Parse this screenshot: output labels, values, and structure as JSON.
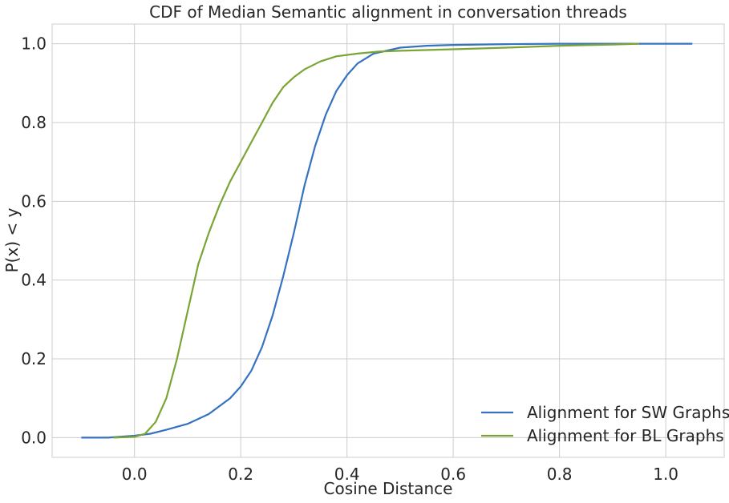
{
  "chart_data": {
    "type": "line",
    "title": "CDF of Median Semantic alignment in conversation threads",
    "xlabel": "Cosine Distance",
    "ylabel": "P(x) < y",
    "xlim": [
      -0.155,
      1.11
    ],
    "ylim": [
      -0.05,
      1.05
    ],
    "xticks": [
      0.0,
      0.2,
      0.4,
      0.6,
      0.8,
      1.0
    ],
    "xtick_labels": [
      "0.0",
      "0.2",
      "0.4",
      "0.6",
      "0.8",
      "1.0"
    ],
    "yticks": [
      0.0,
      0.2,
      0.4,
      0.6,
      0.8,
      1.0
    ],
    "ytick_labels": [
      "0.0",
      "0.2",
      "0.4",
      "0.6",
      "0.8",
      "1.0"
    ],
    "grid": true,
    "legend_position": "lower-right",
    "series": [
      {
        "name": "Alignment for SW Graphs",
        "color": "#3572c2",
        "x": [
          -0.1,
          -0.05,
          0.0,
          0.03,
          0.06,
          0.1,
          0.14,
          0.18,
          0.2,
          0.22,
          0.24,
          0.26,
          0.28,
          0.3,
          0.32,
          0.34,
          0.36,
          0.38,
          0.4,
          0.42,
          0.45,
          0.5,
          0.55,
          0.6,
          0.7,
          0.8,
          0.9,
          1.0,
          1.05
        ],
        "y": [
          0.0,
          0.0,
          0.005,
          0.01,
          0.02,
          0.035,
          0.06,
          0.1,
          0.13,
          0.17,
          0.23,
          0.31,
          0.41,
          0.52,
          0.64,
          0.74,
          0.82,
          0.88,
          0.92,
          0.95,
          0.975,
          0.99,
          0.995,
          0.997,
          0.999,
          1.0,
          1.0,
          1.0,
          1.0
        ]
      },
      {
        "name": "Alignment for BL Graphs",
        "color": "#7ba436",
        "x": [
          -0.04,
          0.0,
          0.02,
          0.04,
          0.06,
          0.08,
          0.1,
          0.12,
          0.14,
          0.16,
          0.18,
          0.2,
          0.22,
          0.24,
          0.26,
          0.28,
          0.3,
          0.32,
          0.35,
          0.38,
          0.42,
          0.46,
          0.5,
          0.6,
          0.7,
          0.8,
          0.9,
          0.95
        ],
        "y": [
          0.0,
          0.002,
          0.01,
          0.04,
          0.1,
          0.2,
          0.32,
          0.44,
          0.52,
          0.59,
          0.65,
          0.7,
          0.75,
          0.8,
          0.85,
          0.89,
          0.915,
          0.935,
          0.955,
          0.968,
          0.975,
          0.98,
          0.982,
          0.986,
          0.99,
          0.995,
          0.998,
          1.0
        ]
      }
    ]
  }
}
